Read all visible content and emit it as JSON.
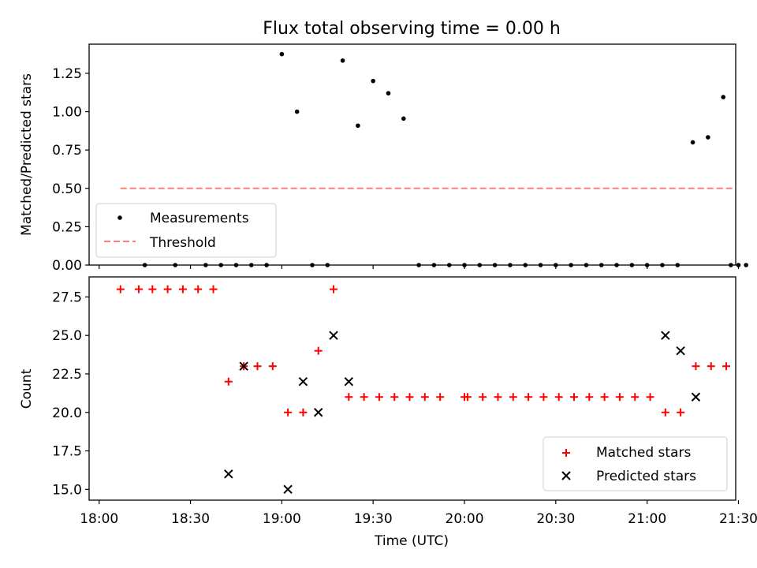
{
  "chart_data": [
    {
      "type": "scatter",
      "title": "Flux total observing time = 0.00 h",
      "ylabel": "Matched/Predicted stars",
      "ylim": [
        0,
        1.44
      ],
      "yticks": [
        0.0,
        0.25,
        0.5,
        0.75,
        1.0,
        1.25
      ],
      "ytick_labels": [
        "0.00",
        "0.25",
        "0.50",
        "0.75",
        "1.00",
        "1.25"
      ],
      "xlim": [
        -0.055,
        3.485
      ],
      "series": [
        {
          "name": "Measurements",
          "marker": "dot",
          "color": "#000000",
          "x": [
            0.25,
            0.4167,
            0.5833,
            0.6667,
            0.75,
            0.8333,
            0.9167,
            1.0,
            1.0833,
            1.1667,
            1.25,
            1.3333,
            1.4167,
            1.5,
            1.5833,
            1.6667,
            1.75,
            1.8333,
            1.9167,
            2.0,
            2.0833,
            2.1667,
            2.25,
            2.3333,
            2.4167,
            2.5,
            2.5833,
            2.6667,
            2.75,
            2.8333,
            2.9167,
            3.0,
            3.0833,
            3.1667,
            3.25,
            3.3333,
            3.4167,
            3.4583,
            3.5,
            3.5417
          ],
          "y": [
            0,
            0,
            0,
            0,
            0,
            0,
            0,
            1.375,
            1.0,
            0,
            0,
            1.333,
            0.909,
            1.2,
            1.12,
            0.955,
            0,
            0,
            0,
            0,
            0,
            0,
            0,
            0,
            0,
            0,
            0,
            0,
            0,
            0,
            0,
            0,
            0,
            0,
            0.8,
            0.833,
            1.095,
            0,
            0,
            0
          ]
        },
        {
          "name": "Threshold",
          "style": "dashed",
          "color": "#ff7f7f",
          "x": [
            0.1167,
            3.4667
          ],
          "y": [
            0.5,
            0.5
          ]
        }
      ],
      "legend": {
        "position": "lower-left",
        "entries": [
          "Measurements",
          "Threshold"
        ]
      }
    },
    {
      "type": "scatter",
      "xlabel": "Time (UTC)",
      "ylabel": "Count",
      "ylim": [
        14.3,
        28.8
      ],
      "yticks": [
        15.0,
        17.5,
        20.0,
        22.5,
        25.0,
        27.5
      ],
      "ytick_labels": [
        "15.0",
        "17.5",
        "20.0",
        "22.5",
        "25.0",
        "27.5"
      ],
      "xlim": [
        -0.055,
        3.485
      ],
      "xticks": [
        0,
        0.5,
        1.0,
        1.5,
        2.0,
        2.5,
        3.0,
        3.5
      ],
      "xtick_labels": [
        "18:00",
        "18:30",
        "19:00",
        "19:30",
        "20:00",
        "20:30",
        "21:00",
        "21:30"
      ],
      "series": [
        {
          "name": "Matched stars",
          "marker": "plus",
          "color": "#ff0000",
          "x": [
            0.1167,
            0.2167,
            0.2917,
            0.375,
            0.4583,
            0.5417,
            0.625,
            0.7083,
            0.7917,
            0.8667,
            0.95,
            1.0333,
            1.1167,
            1.2,
            1.2833,
            1.3667,
            1.45,
            1.5333,
            1.6167,
            1.7,
            1.7833,
            1.8667,
            2.0,
            2.0167,
            2.1,
            2.1833,
            2.2667,
            2.35,
            2.4333,
            2.5167,
            2.6,
            2.6833,
            2.7667,
            2.85,
            2.9333,
            3.0167,
            3.1,
            3.1833,
            3.2667,
            3.35,
            3.4333
          ],
          "y": [
            28,
            28,
            28,
            28,
            28,
            28,
            28,
            22,
            23,
            23,
            23,
            20,
            20,
            24,
            28,
            21,
            21,
            21,
            21,
            21,
            21,
            21,
            21,
            21,
            21,
            21,
            21,
            21,
            21,
            21,
            21,
            21,
            21,
            21,
            21,
            21,
            20,
            20,
            23,
            23,
            23
          ]
        },
        {
          "name": "Predicted stars",
          "marker": "x",
          "color": "#000000",
          "x": [
            0.7083,
            0.7917,
            1.0333,
            1.1167,
            1.2,
            1.2833,
            1.3667,
            3.1,
            3.1833,
            3.2667
          ],
          "y": [
            16,
            23,
            15,
            22,
            20,
            25,
            22,
            25,
            24,
            21
          ]
        }
      ],
      "legend": {
        "position": "lower-right",
        "entries": [
          "Matched stars",
          "Predicted stars"
        ]
      }
    }
  ]
}
